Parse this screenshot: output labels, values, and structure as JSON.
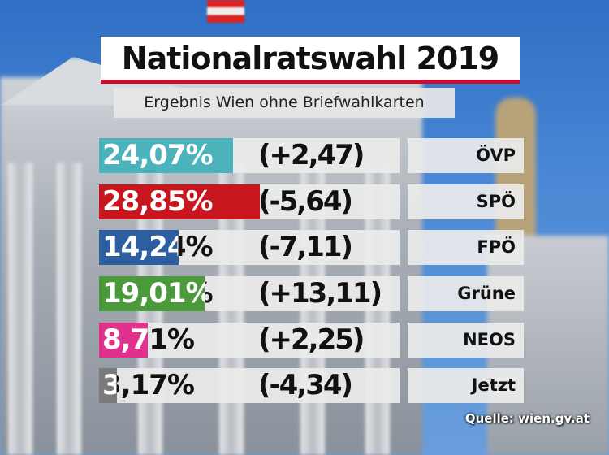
{
  "title": "Nationalratswahl 2019",
  "subtitle": "Ergebnis Wien ohne Briefwahlkarten",
  "source": "Quelle: wien.gv.at",
  "colors": {
    "title_underline": "#c8102e"
  },
  "chart_data": {
    "type": "bar",
    "orientation": "horizontal",
    "categories": [
      "ÖVP",
      "SPÖ",
      "FPÖ",
      "Grüne",
      "NEOS",
      "Jetzt"
    ],
    "values": [
      24.07,
      28.85,
      14.24,
      19.01,
      8.71,
      3.17
    ],
    "value_labels": [
      "24,07%",
      "28,85%",
      "14,24%",
      "19,01%",
      "8,71%",
      "3,17%"
    ],
    "changes": [
      2.47,
      -5.64,
      -7.11,
      13.11,
      2.25,
      -4.34
    ],
    "change_labels": [
      "(+2,47)",
      "(-5,64)",
      "(-7,11)",
      "(+13,11)",
      "(+2,25)",
      "(-4,34)"
    ],
    "colors": [
      "#4cb3bd",
      "#c8161e",
      "#2d5fa0",
      "#4a9a3c",
      "#e0318d",
      "#7a7a7a"
    ],
    "title": "Nationalratswahl 2019",
    "subtitle": "Ergebnis Wien ohne Briefwahlkarten"
  }
}
